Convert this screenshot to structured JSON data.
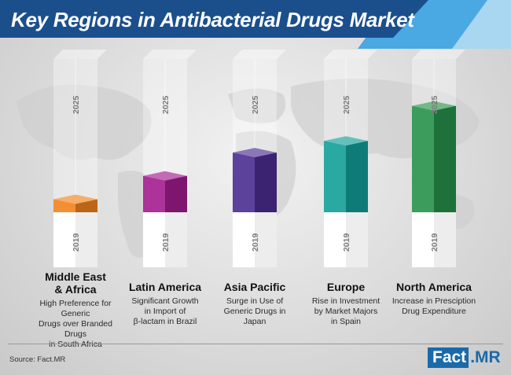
{
  "title": "Key Regions in Antibacterial Drugs Market",
  "source": "Source: Fact.MR",
  "brand": {
    "part1": "Fact",
    "part2": ".MR"
  },
  "chart_data": {
    "type": "bar",
    "series": [
      {
        "name": "2019",
        "values": [
          1,
          1,
          1,
          1,
          1
        ]
      },
      {
        "name": "2025",
        "values": [
          0.1,
          0.28,
          0.46,
          0.55,
          0.82
        ]
      }
    ],
    "categories": [
      "Middle East\n& Africa",
      "Latin America",
      "Asia Pacific",
      "Europe",
      "North America"
    ],
    "descriptions": [
      "High Preference for Generic\nDrugs over Branded Drugs\nin South Africa",
      "Significant Growth\nin Import of\nβ-lactam in Brazil",
      "Surge in Use of\nGeneric Drugs in\nJapan",
      "Rise in Investment\nby Market Majors\nin Spain",
      "Increase in Presciption\nDrug Expenditure"
    ],
    "colors": [
      "#f0821c",
      "#a21c8e",
      "#4b2d91",
      "#129e98",
      "#26914a"
    ],
    "axis_labels": {
      "lower": "2019",
      "upper": "2025"
    },
    "legend": "none",
    "grid": false
  }
}
